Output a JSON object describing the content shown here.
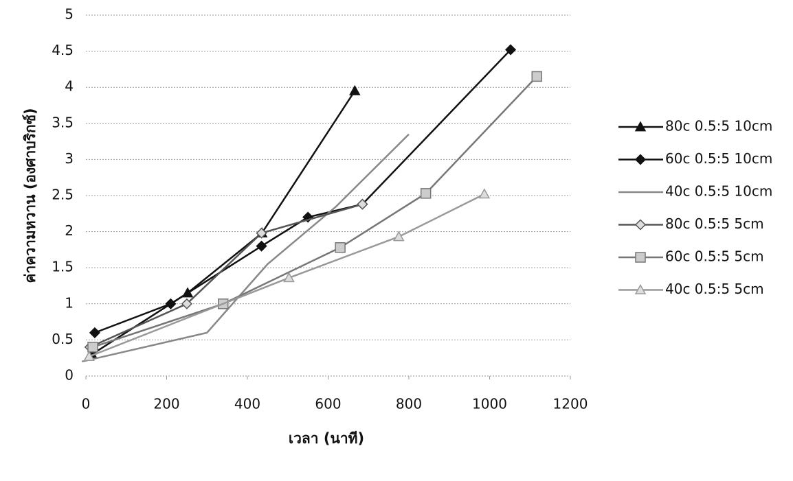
{
  "chart_data": {
    "type": "line",
    "x_label": "เวลา (นาที)",
    "y_label": "ค่าความหวาน (องศาบริกซ์)",
    "xlim": [
      0,
      1200
    ],
    "xticks": [
      0,
      200,
      400,
      600,
      800,
      1000,
      1200
    ],
    "ylim": [
      0,
      5
    ],
    "yticks": [
      0,
      0.5,
      1,
      1.5,
      2,
      2.5,
      3,
      3.5,
      4,
      4.5,
      5
    ],
    "grid": true,
    "legend": "right",
    "series": [
      {
        "name": "80c 0.5:5 10cm",
        "color": "#111111",
        "marker": "triangle",
        "x": [
          15,
          252,
          436,
          666
        ],
        "values": [
          0.3,
          1.15,
          1.98,
          3.95
        ]
      },
      {
        "name": "60c 0.5:5 10cm",
        "color": "#111111",
        "marker": "diamond",
        "x": [
          22,
          210,
          435,
          550,
          685,
          1052
        ],
        "values": [
          0.6,
          1.0,
          1.8,
          2.2,
          2.38,
          4.52
        ]
      },
      {
        "name": "40c 0.5:5 10cm",
        "color": "#888888",
        "marker": "none",
        "x": [
          -10,
          300,
          450,
          620,
          800
        ],
        "values": [
          0.2,
          0.6,
          1.55,
          2.35,
          3.35
        ]
      },
      {
        "name": "80c 0.5:5 5cm",
        "color": "#555555",
        "marker": "diamond-open",
        "x": [
          10,
          250,
          435,
          685
        ],
        "values": [
          0.4,
          1.0,
          1.98,
          2.38
        ]
      },
      {
        "name": "60c 0.5:5 5cm",
        "color": "#777777",
        "marker": "square",
        "x": [
          17,
          340,
          630,
          842,
          1117
        ],
        "values": [
          0.4,
          1.0,
          1.78,
          2.53,
          4.15
        ]
      },
      {
        "name": "40c 0.5:5 5cm",
        "color": "#999999",
        "marker": "triangle-open",
        "x": [
          8,
          503,
          775,
          987
        ],
        "values": [
          0.27,
          1.36,
          1.93,
          2.52
        ]
      }
    ]
  }
}
